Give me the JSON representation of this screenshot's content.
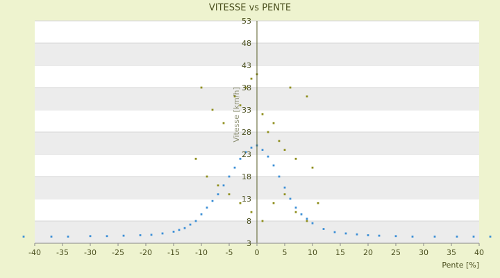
{
  "chart_data": {
    "type": "scatter",
    "title": "VITESSE vs PENTE",
    "xlabel": "Pente [%]",
    "ylabel": "Vitesse [km/h]",
    "xlim": [
      -40,
      40
    ],
    "ylim": [
      3,
      53
    ],
    "x_ticks": [
      "-40",
      "-35",
      "-30",
      "-25",
      "-20",
      "-15",
      "-10",
      "-5",
      "0",
      "5",
      "10",
      "15",
      "20",
      "25",
      "30",
      "35",
      "40"
    ],
    "y_ticks": [
      "3",
      "8",
      "13",
      "18",
      "23",
      "28",
      "33",
      "38",
      "43",
      "48",
      "53"
    ],
    "grid": "horizontal-bands",
    "legend": "none",
    "colors": {
      "series_blue": "#3c8fd6",
      "series_olive": "#8f8f1e",
      "band": "#ececec",
      "background": "#eef3cf"
    },
    "series": [
      {
        "color": "#3c8fd6",
        "points": [
          [
            -42,
            4.5
          ],
          [
            -37,
            4.5
          ],
          [
            -34,
            4.5
          ],
          [
            -30,
            4.6
          ],
          [
            -27,
            4.6
          ],
          [
            -24,
            4.7
          ],
          [
            -21,
            4.8
          ],
          [
            -19,
            4.9
          ],
          [
            -17,
            5.2
          ],
          [
            -15,
            5.6
          ],
          [
            -14,
            6.0
          ],
          [
            -13,
            6.4
          ],
          [
            -12,
            7.2
          ],
          [
            -11,
            8.0
          ],
          [
            -10,
            9.5
          ],
          [
            -9,
            11
          ],
          [
            -8,
            12.5
          ],
          [
            -7,
            14
          ],
          [
            -6,
            16
          ],
          [
            -5,
            18
          ],
          [
            -4,
            20
          ],
          [
            -3,
            22
          ],
          [
            -2,
            23.5
          ],
          [
            -1,
            24.5
          ],
          [
            0,
            25
          ],
          [
            1,
            24
          ],
          [
            2,
            22.5
          ],
          [
            3,
            20.5
          ],
          [
            4,
            18
          ],
          [
            5,
            15.5
          ],
          [
            6,
            13
          ],
          [
            7,
            11
          ],
          [
            8,
            9.5
          ],
          [
            9,
            8.5
          ],
          [
            10,
            7.5
          ],
          [
            12,
            6.2
          ],
          [
            14,
            5.5
          ],
          [
            16,
            5.2
          ],
          [
            18,
            5.0
          ],
          [
            20,
            4.8
          ],
          [
            22,
            4.7
          ],
          [
            25,
            4.6
          ],
          [
            28,
            4.5
          ],
          [
            32,
            4.5
          ],
          [
            36,
            4.5
          ],
          [
            39,
            4.5
          ],
          [
            42,
            4.5
          ]
        ]
      },
      {
        "color": "#8f8f1e",
        "points": [
          [
            -10,
            38
          ],
          [
            -8,
            33
          ],
          [
            -6,
            30
          ],
          [
            -4,
            36
          ],
          [
            -3,
            34
          ],
          [
            -2,
            38
          ],
          [
            -1,
            40
          ],
          [
            0,
            41
          ],
          [
            1,
            32
          ],
          [
            2,
            28
          ],
          [
            3,
            30
          ],
          [
            4,
            26
          ],
          [
            5,
            24
          ],
          [
            6,
            38
          ],
          [
            7,
            22
          ],
          [
            9,
            36
          ],
          [
            10,
            20
          ],
          [
            -11,
            22
          ],
          [
            -9,
            18
          ],
          [
            -7,
            16
          ],
          [
            -5,
            14
          ],
          [
            -3,
            12
          ],
          [
            -1,
            10
          ],
          [
            1,
            8
          ],
          [
            3,
            12
          ],
          [
            5,
            14
          ],
          [
            7,
            10
          ],
          [
            9,
            8
          ],
          [
            11,
            12
          ]
        ]
      }
    ]
  }
}
